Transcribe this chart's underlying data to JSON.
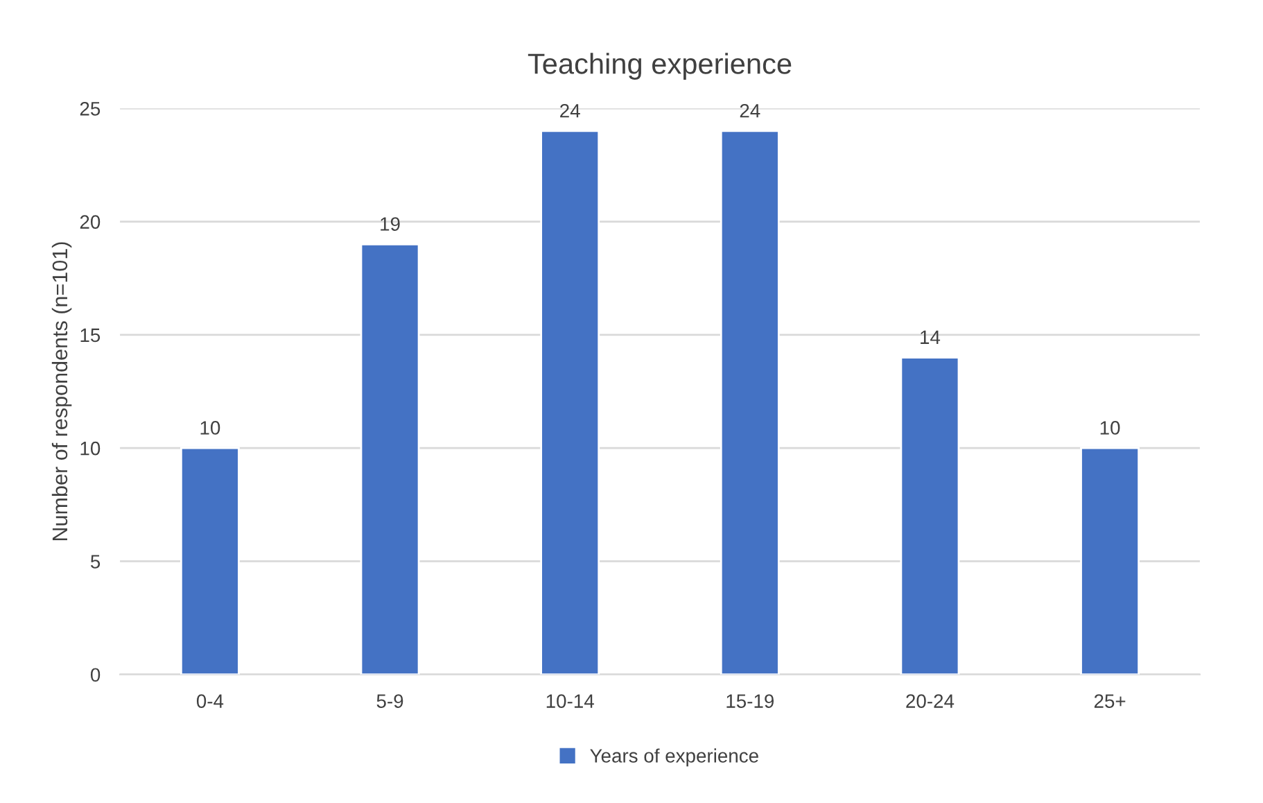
{
  "chart_data": {
    "type": "bar",
    "title": "Teaching experience",
    "ylabel": "Number of respondents (n=101)",
    "categories": [
      "0-4",
      "5-9",
      "10-14",
      "15-19",
      "20-24",
      "25+"
    ],
    "series": [
      {
        "name": "Years of experience",
        "color": "#4472c4",
        "values": [
          10,
          19,
          24,
          24,
          14,
          10
        ]
      }
    ],
    "ylim": [
      0,
      25
    ],
    "yticks": [
      0,
      5,
      10,
      15,
      20,
      25
    ],
    "grid": "y",
    "legend": "bottom",
    "data_labels": true
  }
}
